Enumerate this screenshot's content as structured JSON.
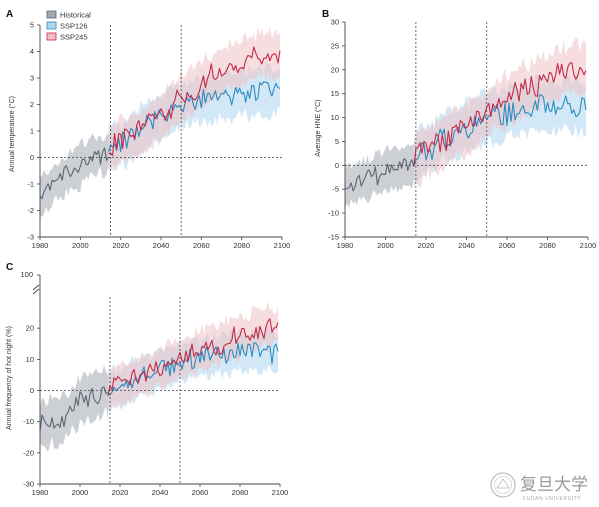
{
  "figure": {
    "legend": [
      {
        "label": "Historical",
        "color": "#a3a8ae",
        "line": "#5b6770"
      },
      {
        "label": "SSP126",
        "color": "#aed6ee",
        "line": "#2a8cc0"
      },
      {
        "label": "SSP245",
        "color": "#efc1c4",
        "line": "#c42a47"
      }
    ],
    "watermark": {
      "text": "复旦大学",
      "sub": "FUDAN UNIVERSITY"
    }
  },
  "chart_data": [
    {
      "panel": "A",
      "type": "line",
      "title": "",
      "xlabel": "",
      "ylabel": "Annual temperature (°C)",
      "xlim": [
        1980,
        2100
      ],
      "ylim": [
        -3,
        5
      ],
      "xticks": [
        1980,
        2000,
        2020,
        2040,
        2060,
        2080,
        2100
      ],
      "yticks": [
        -3,
        -2,
        -1,
        0,
        1,
        2,
        3,
        4,
        5
      ],
      "vlines": [
        2015,
        2050
      ],
      "hline": 0,
      "grid": false,
      "legend_position": "top-left",
      "series": [
        {
          "name": "Historical",
          "x": [
            1980,
            2014
          ],
          "knots": [
            [
              1980,
              -1.4
            ],
            [
              1990,
              -0.8
            ],
            [
              2000,
              -0.3
            ],
            [
              2005,
              0.0
            ],
            [
              2010,
              0.1
            ],
            [
              2014,
              0.2
            ]
          ],
          "band": 0.7
        },
        {
          "name": "SSP126",
          "x": [
            2014,
            2099
          ],
          "knots": [
            [
              2014,
              0.3
            ],
            [
              2020,
              0.5
            ],
            [
              2030,
              1.1
            ],
            [
              2040,
              1.6
            ],
            [
              2050,
              2.0
            ],
            [
              2060,
              2.2
            ],
            [
              2070,
              2.3
            ],
            [
              2080,
              2.4
            ],
            [
              2090,
              2.5
            ],
            [
              2099,
              2.4
            ]
          ],
          "band": 0.8
        },
        {
          "name": "SSP245",
          "x": [
            2014,
            2099
          ],
          "knots": [
            [
              2014,
              0.3
            ],
            [
              2020,
              0.6
            ],
            [
              2030,
              1.0
            ],
            [
              2040,
              1.6
            ],
            [
              2050,
              2.2
            ],
            [
              2060,
              2.8
            ],
            [
              2070,
              3.3
            ],
            [
              2080,
              3.6
            ],
            [
              2090,
              3.9
            ],
            [
              2099,
              3.8
            ]
          ],
          "band": 0.8
        }
      ]
    },
    {
      "panel": "B",
      "type": "line",
      "title": "",
      "xlabel": "",
      "ylabel": "Average HNE (°C)",
      "xlim": [
        1980,
        2100
      ],
      "ylim": [
        -15,
        30
      ],
      "xticks": [
        1980,
        2000,
        2020,
        2040,
        2060,
        2080,
        2100
      ],
      "yticks": [
        -15,
        -10,
        -5,
        0,
        5,
        10,
        15,
        20,
        25,
        30
      ],
      "vlines": [
        2015,
        2050
      ],
      "hline": 0,
      "grid": false,
      "series": [
        {
          "name": "Historical",
          "x": [
            1980,
            2014
          ],
          "knots": [
            [
              1980,
              -4.5
            ],
            [
              1990,
              -3.0
            ],
            [
              2000,
              -1.0
            ],
            [
              2010,
              0.0
            ],
            [
              2014,
              0.5
            ]
          ],
          "band": 4.0
        },
        {
          "name": "SSP126",
          "x": [
            2014,
            2099
          ],
          "knots": [
            [
              2014,
              1.0
            ],
            [
              2020,
              3.0
            ],
            [
              2030,
              6.0
            ],
            [
              2040,
              8.0
            ],
            [
              2050,
              10.0
            ],
            [
              2060,
              11.0
            ],
            [
              2070,
              12.0
            ],
            [
              2080,
              12.5
            ],
            [
              2090,
              13.0
            ],
            [
              2099,
              12.0
            ]
          ],
          "band": 5.0
        },
        {
          "name": "SSP245",
          "x": [
            2014,
            2099
          ],
          "knots": [
            [
              2014,
              1.0
            ],
            [
              2020,
              3.0
            ],
            [
              2030,
              5.0
            ],
            [
              2040,
              8.0
            ],
            [
              2050,
              11.0
            ],
            [
              2060,
              14.0
            ],
            [
              2070,
              16.0
            ],
            [
              2080,
              18.0
            ],
            [
              2090,
              20.0
            ],
            [
              2099,
              20.0
            ]
          ],
          "band": 5.0
        }
      ]
    },
    {
      "panel": "C",
      "type": "line",
      "title": "",
      "xlabel": "",
      "ylabel": "Annual frequency of hot night (%)",
      "xlim": [
        1980,
        2100
      ],
      "ylim": [
        -30,
        30
      ],
      "axis_break_top_label": "100",
      "xticks": [
        1980,
        2000,
        2020,
        2040,
        2060,
        2080,
        2100
      ],
      "yticks": [
        -30,
        -20,
        -10,
        0,
        10,
        20
      ],
      "vlines": [
        2015,
        2050
      ],
      "hline": 0,
      "grid": false,
      "series": [
        {
          "name": "Historical",
          "x": [
            1980,
            2014
          ],
          "knots": [
            [
              1980,
              -12.0
            ],
            [
              1990,
              -9.0
            ],
            [
              2000,
              -4.0
            ],
            [
              2010,
              -1.0
            ],
            [
              2014,
              0.0
            ]
          ],
          "band": 7.0
        },
        {
          "name": "SSP126",
          "x": [
            2014,
            2099
          ],
          "knots": [
            [
              2014,
              0.0
            ],
            [
              2020,
              1.0
            ],
            [
              2030,
              4.0
            ],
            [
              2040,
              7.0
            ],
            [
              2050,
              9.0
            ],
            [
              2060,
              10.5
            ],
            [
              2070,
              11.5
            ],
            [
              2080,
              12.5
            ],
            [
              2090,
              13.0
            ],
            [
              2099,
              12.0
            ]
          ],
          "band": 6.0
        },
        {
          "name": "SSP245",
          "x": [
            2014,
            2099
          ],
          "knots": [
            [
              2014,
              0.0
            ],
            [
              2020,
              2.0
            ],
            [
              2030,
              4.5
            ],
            [
              2040,
              7.0
            ],
            [
              2050,
              10.0
            ],
            [
              2060,
              13.0
            ],
            [
              2070,
              15.0
            ],
            [
              2080,
              17.5
            ],
            [
              2090,
              19.5
            ],
            [
              2099,
              21.0
            ]
          ],
          "band": 6.0
        }
      ]
    }
  ]
}
